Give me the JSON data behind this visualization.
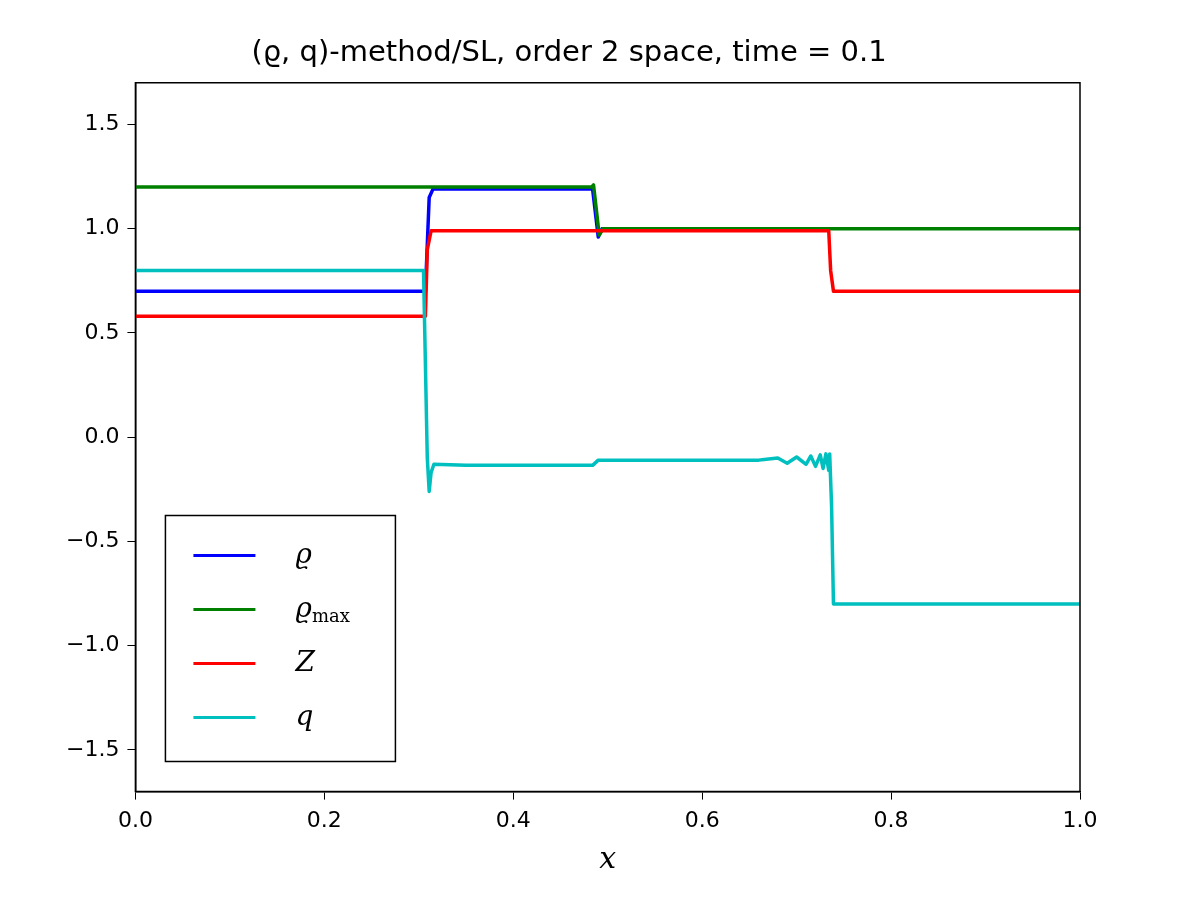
{
  "chart_data": {
    "type": "line",
    "title": "(ϱ, q)-method/SL, order 2 space, time = 0.1",
    "xlabel": "x",
    "xlim": [
      0,
      1
    ],
    "ylim": [
      -1.7,
      1.7
    ],
    "xticks": [
      {
        "value": 0,
        "label": "0.0"
      },
      {
        "value": 0.2,
        "label": "0.2"
      },
      {
        "value": 0.4,
        "label": "0.4"
      },
      {
        "value": 0.6,
        "label": "0.6"
      },
      {
        "value": 0.8,
        "label": "0.8"
      },
      {
        "value": 1,
        "label": "1.0"
      }
    ],
    "yticks": [
      {
        "value": -1.5,
        "label": "−1.5"
      },
      {
        "value": -1,
        "label": "−1.0"
      },
      {
        "value": -0.5,
        "label": "−0.5"
      },
      {
        "value": 0,
        "label": "0.0"
      },
      {
        "value": 0.5,
        "label": "0.5"
      },
      {
        "value": 1,
        "label": "1.0"
      },
      {
        "value": 1.5,
        "label": "1.5"
      }
    ],
    "grid": false,
    "legend": "bottom left",
    "marker": "none",
    "line_style": "solid",
    "series": [
      {
        "name": "ϱ",
        "color": "#0000ff",
        "x": [
          0,
          0.307,
          0.311,
          0.315,
          0.484,
          0.49,
          0.494
        ],
        "values": [
          0.7,
          0.7,
          1.15,
          1.19,
          1.19,
          0.96,
          1.0
        ]
      },
      {
        "name": "ϱ$_{max}$",
        "color": "#008000",
        "x": [
          0,
          0.483,
          0.485,
          0.491,
          0.495,
          1
        ],
        "values": [
          1.2,
          1.2,
          1.21,
          0.97,
          1.0,
          1.0
        ]
      },
      {
        "name": "Z",
        "color": "#ff0000",
        "x": [
          0,
          0.307,
          0.309,
          0.313,
          0.734,
          0.736,
          0.739,
          1
        ],
        "values": [
          0.58,
          0.58,
          0.9,
          0.99,
          0.99,
          0.8,
          0.7,
          0.7
        ]
      },
      {
        "name": "q",
        "color": "#00bfbf",
        "x": [
          0,
          0.305,
          0.309,
          0.311,
          0.313,
          0.316,
          0.35,
          0.484,
          0.49,
          0.6,
          0.66,
          0.68,
          0.69,
          0.7,
          0.71,
          0.715,
          0.72,
          0.725,
          0.728,
          0.731,
          0.734,
          0.735,
          0.737,
          0.739,
          1
        ],
        "values": [
          0.8,
          0.8,
          -0.1,
          -0.26,
          -0.17,
          -0.13,
          -0.135,
          -0.135,
          -0.11,
          -0.11,
          -0.11,
          -0.1,
          -0.125,
          -0.095,
          -0.13,
          -0.09,
          -0.14,
          -0.085,
          -0.15,
          -0.08,
          -0.16,
          -0.08,
          -0.33,
          -0.8,
          -0.8
        ]
      }
    ]
  }
}
